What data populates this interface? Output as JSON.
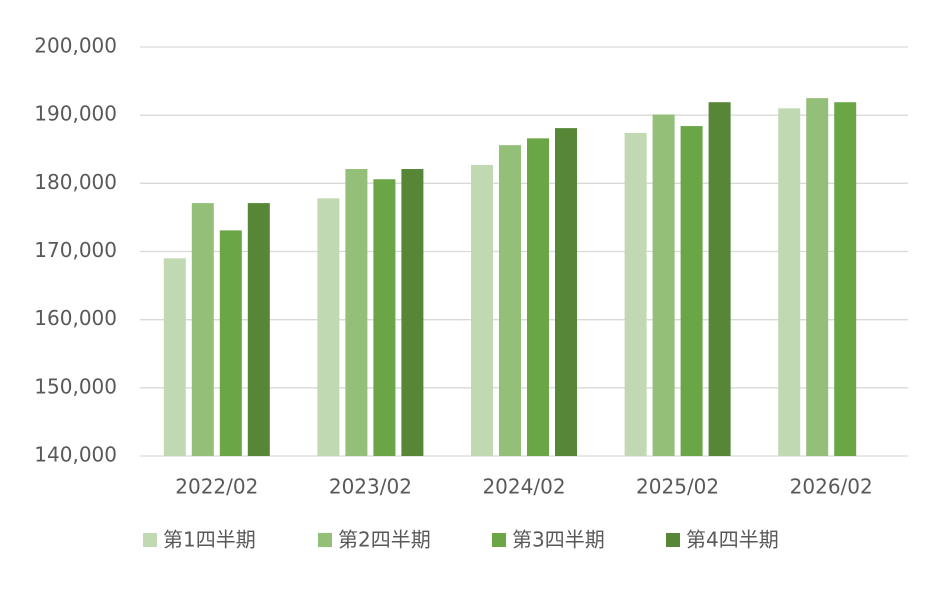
{
  "chart_data": {
    "type": "bar",
    "categories": [
      "2022/02",
      "2023/02",
      "2024/02",
      "2025/02",
      "2026/02"
    ],
    "series": [
      {
        "name": "第1四半期",
        "color": "#c0d9b3",
        "values": [
          169000,
          177800,
          182700,
          187400,
          191000
        ]
      },
      {
        "name": "第2四半期",
        "color": "#93bf79",
        "values": [
          177100,
          182100,
          185600,
          190100,
          192500
        ]
      },
      {
        "name": "第3四半期",
        "color": "#6aa646",
        "values": [
          173100,
          180600,
          186600,
          188400,
          191900
        ]
      },
      {
        "name": "第4四半期",
        "color": "#568636",
        "values": [
          177100,
          182100,
          188100,
          191900,
          null
        ]
      }
    ],
    "ylim": [
      140000,
      200000
    ],
    "yticks": [
      {
        "value": 140000,
        "label": "140,000"
      },
      {
        "value": 150000,
        "label": "150,000"
      },
      {
        "value": 160000,
        "label": "160,000"
      },
      {
        "value": 170000,
        "label": "170,000"
      },
      {
        "value": 180000,
        "label": "180,000"
      },
      {
        "value": 190000,
        "label": "190,000"
      },
      {
        "value": 200000,
        "label": "200,000"
      }
    ],
    "grid": true
  }
}
